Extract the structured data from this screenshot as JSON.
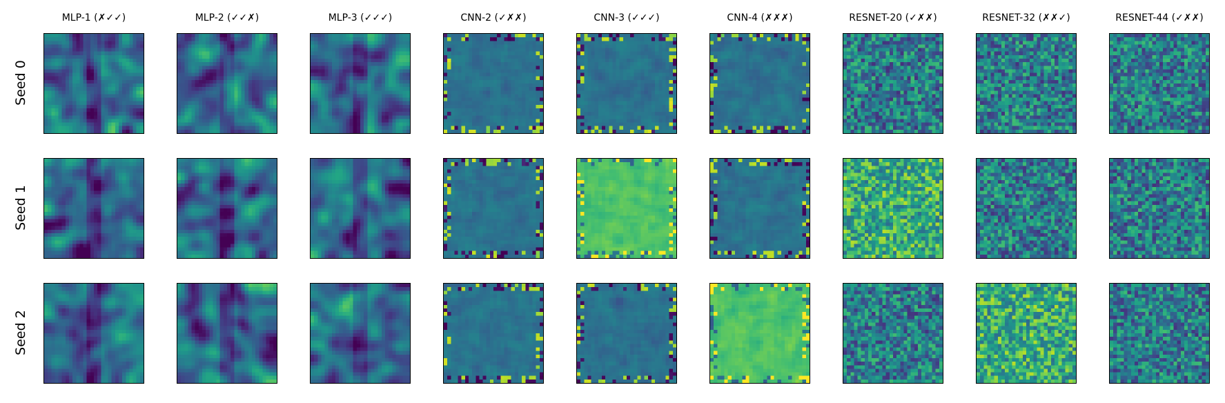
{
  "chart_data": {
    "type": "heatmap",
    "colormap": "viridis",
    "grid": false,
    "columns": [
      "MLP-1 (✗✓✓)",
      "MLP-2 (✓✓✗)",
      "MLP-3 (✓✓✓)",
      "CNN-2 (✓✗✗)",
      "CNN-3 (✓✓✓)",
      "CNN-4 (✗✗✗)",
      "RESNET-20 (✓✗✗)",
      "RESNET-32 (✗✗✓)",
      "RESNET-44 (✓✗✗)"
    ],
    "rows": [
      "Seed 0",
      "Seed 1",
      "Seed 2"
    ],
    "panel_style": [
      [
        "mlp",
        "mlp",
        "mlp",
        "cnn",
        "cnn",
        "cnn",
        "resnet",
        "resnet",
        "resnet"
      ],
      [
        "mlp",
        "mlp",
        "mlp",
        "cnn",
        "cnn-bright",
        "cnn",
        "resnet-bright",
        "resnet",
        "resnet"
      ],
      [
        "mlp",
        "mlp",
        "mlp",
        "cnn",
        "cnn",
        "cnn-bright",
        "resnet",
        "resnet-bright",
        "resnet"
      ]
    ]
  }
}
